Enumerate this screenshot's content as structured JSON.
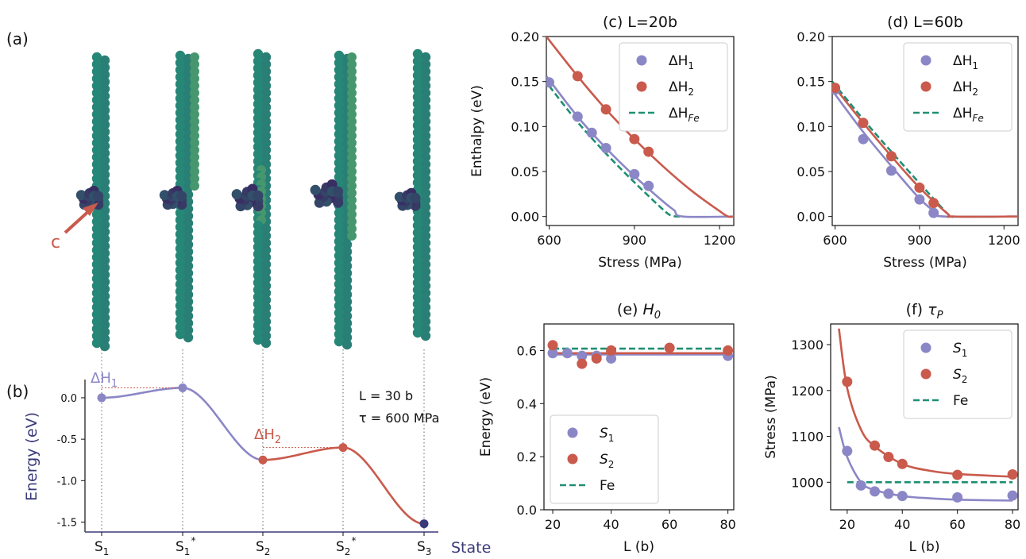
{
  "colors": {
    "purple": "#8b87c6",
    "red": "#c95a4c",
    "green": "#1f8f73",
    "navy": "#3a3a7a",
    "ink": "#111111"
  },
  "panel_a": {
    "label": "(a)",
    "annotation": "c"
  },
  "panel_b": {
    "label": "(b)",
    "ylabel": "Energy (eV)",
    "xlabel": "State",
    "info_l": "L = 30 b",
    "info_tau": "τ = 600 MPa",
    "dh1_label": "ΔH",
    "dh1_sub": "1",
    "dh2_label": "ΔH",
    "dh2_sub": "2"
  },
  "chart_data": [
    {
      "id": "b",
      "type": "line",
      "categories": [
        "S1",
        "S1*",
        "S2",
        "S2*",
        "S3"
      ],
      "category_ticks": [
        {
          "base": "S",
          "sub": "1",
          "sup": ""
        },
        {
          "base": "S",
          "sub": "1",
          "sup": "*"
        },
        {
          "base": "S",
          "sub": "2",
          "sup": ""
        },
        {
          "base": "S",
          "sub": "2",
          "sup": "*"
        },
        {
          "base": "S",
          "sub": "3",
          "sup": ""
        }
      ],
      "values": [
        0.0,
        0.12,
        -0.75,
        -0.6,
        -1.52
      ],
      "yticks": [
        0.0,
        -0.5,
        -1.0,
        -1.5
      ],
      "ytick_labels": [
        "0.0",
        "-0.5",
        "-1.0",
        "-1.5"
      ],
      "ylim": [
        -1.62,
        0.22
      ]
    },
    {
      "id": "c",
      "type": "line",
      "title": "(c) L=20b",
      "xlabel": "Stress (MPa)",
      "ylabel": "Enthalpy (eV)",
      "xlim": [
        590,
        1250
      ],
      "ylim": [
        -0.01,
        0.2
      ],
      "xticks": [
        600,
        900,
        1200
      ],
      "xtick_labels": [
        "600",
        "900",
        "1200"
      ],
      "yticks": [
        0.0,
        0.05,
        0.1,
        0.15,
        0.2
      ],
      "ytick_labels": [
        "0.00",
        "0.05",
        "0.10",
        "0.15",
        "0.20"
      ],
      "legend": "top-right",
      "series": [
        {
          "name": "ΔH1",
          "legend_base": "ΔH",
          "legend_sub": "1",
          "color": "purple",
          "kind": "scatter",
          "x": [
            600,
            700,
            750,
            800,
            900,
            950
          ],
          "y": [
            0.149,
            0.111,
            0.093,
            0.076,
            0.047,
            0.034
          ]
        },
        {
          "name": "ΔH2",
          "legend_base": "ΔH",
          "legend_sub": "2",
          "color": "red",
          "kind": "scatter",
          "x": [
            700,
            800,
            900,
            950
          ],
          "y": [
            0.156,
            0.119,
            0.086,
            0.072
          ]
        },
        {
          "name": "ΔHFe",
          "legend_base": "ΔH",
          "legend_sub": "Fe",
          "color": "green",
          "kind": "dashed",
          "x": [
            600,
            700,
            800,
            900,
            1000,
            1030,
            1060
          ],
          "y": [
            0.145,
            0.105,
            0.07,
            0.038,
            0.008,
            0.001,
            0.0
          ]
        },
        {
          "kind": "line",
          "color": "purple",
          "x": [
            590,
            700,
            800,
            900,
            1000,
            1040,
            1070,
            1250
          ],
          "y": [
            0.156,
            0.111,
            0.076,
            0.045,
            0.017,
            0.007,
            0.0,
            0.0
          ]
        },
        {
          "kind": "line",
          "color": "red",
          "x": [
            590,
            700,
            800,
            900,
            1000,
            1100,
            1200,
            1230,
            1250
          ],
          "y": [
            0.2,
            0.156,
            0.119,
            0.086,
            0.056,
            0.029,
            0.006,
            0.0,
            0.0
          ]
        }
      ]
    },
    {
      "id": "d",
      "type": "line",
      "title": "(d) L=60b",
      "xlabel": "Stress (MPa)",
      "ylabel": "",
      "xlim": [
        590,
        1250
      ],
      "ylim": [
        -0.01,
        0.2
      ],
      "xticks": [
        600,
        900,
        1200
      ],
      "xtick_labels": [
        "600",
        "900",
        "1200"
      ],
      "yticks": [
        0.0,
        0.05,
        0.1,
        0.15,
        0.2
      ],
      "ytick_labels": [
        "0.00",
        "0.05",
        "0.10",
        "0.15",
        "0.20"
      ],
      "legend": "top-right",
      "series": [
        {
          "name": "ΔH1",
          "legend_base": "ΔH",
          "legend_sub": "1",
          "color": "purple",
          "kind": "scatter",
          "x": [
            600,
            700,
            800,
            900,
            950
          ],
          "y": [
            0.141,
            0.086,
            0.051,
            0.019,
            0.004
          ]
        },
        {
          "name": "ΔH2",
          "legend_base": "ΔH",
          "legend_sub": "2",
          "color": "red",
          "kind": "scatter",
          "x": [
            600,
            700,
            800,
            900,
            950
          ],
          "y": [
            0.143,
            0.104,
            0.067,
            0.032,
            0.015
          ]
        },
        {
          "name": "ΔHFe",
          "legend_base": "ΔH",
          "legend_sub": "Fe",
          "color": "green",
          "kind": "dashed",
          "x": [
            590,
            700,
            800,
            900,
            1000,
            1020
          ],
          "y": [
            0.15,
            0.108,
            0.072,
            0.037,
            0.003,
            0.0
          ]
        },
        {
          "kind": "line",
          "color": "purple",
          "x": [
            590,
            700,
            800,
            900,
            960,
            990,
            1250
          ],
          "y": [
            0.14,
            0.094,
            0.056,
            0.02,
            0.004,
            0.0,
            0.0
          ]
        },
        {
          "kind": "line",
          "color": "red",
          "x": [
            590,
            700,
            800,
            900,
            1000,
            1020,
            1250
          ],
          "y": [
            0.147,
            0.104,
            0.067,
            0.032,
            0.003,
            0.0,
            0.0
          ]
        }
      ]
    },
    {
      "id": "e",
      "type": "line",
      "title_base": "(e) ",
      "title_italic": "H",
      "title_sub": "0",
      "xlabel": "L (b)",
      "ylabel": "Energy (eV)",
      "xlim": [
        17,
        82
      ],
      "ylim": [
        0,
        0.7
      ],
      "xticks": [
        20,
        40,
        60,
        80
      ],
      "xtick_labels": [
        "20",
        "40",
        "60",
        "80"
      ],
      "yticks": [
        0.0,
        0.2,
        0.4,
        0.6
      ],
      "ytick_labels": [
        "0.0",
        "0.2",
        "0.4",
        "0.6"
      ],
      "legend": "bottom-left",
      "series": [
        {
          "name": "S1",
          "legend_base": "S",
          "legend_sub": "1",
          "color": "purple",
          "kind": "scatter",
          "x": [
            20,
            25,
            30,
            35,
            40,
            60,
            80
          ],
          "y": [
            0.59,
            0.59,
            0.58,
            0.58,
            0.57,
            0.61,
            0.58
          ]
        },
        {
          "name": "S2",
          "legend_base": "S",
          "legend_sub": "2",
          "color": "red",
          "kind": "scatter",
          "x": [
            20,
            30,
            35,
            40,
            60,
            80
          ],
          "y": [
            0.62,
            0.55,
            0.57,
            0.6,
            0.61,
            0.6
          ]
        },
        {
          "name": "Fe",
          "legend_base": "Fe",
          "legend_sub": "",
          "color": "green",
          "kind": "dashed",
          "x": [
            20,
            80
          ],
          "y": [
            0.607,
            0.607
          ]
        },
        {
          "kind": "line",
          "color": "purple",
          "x": [
            20,
            80
          ],
          "y": [
            0.585,
            0.585
          ]
        },
        {
          "kind": "line",
          "color": "red",
          "x": [
            20,
            80
          ],
          "y": [
            0.59,
            0.59
          ]
        }
      ]
    },
    {
      "id": "f",
      "type": "line",
      "title_base": "(f) ",
      "title_italic": "τ",
      "title_sub": "P",
      "xlabel": "L (b)",
      "ylabel": "Stress (MPa)",
      "xlim": [
        14,
        82
      ],
      "ylim": [
        940,
        1345
      ],
      "xticks": [
        20,
        40,
        60,
        80
      ],
      "xtick_labels": [
        "20",
        "40",
        "60",
        "80"
      ],
      "yticks": [
        1000,
        1100,
        1200,
        1300
      ],
      "ytick_labels": [
        "1000",
        "1100",
        "1200",
        "1300"
      ],
      "legend": "top-right",
      "series": [
        {
          "name": "S1",
          "legend_base": "S",
          "legend_sub": "1",
          "color": "purple",
          "kind": "scatter",
          "x": [
            20,
            25,
            30,
            35,
            40,
            60,
            80
          ],
          "y": [
            1068,
            993,
            980,
            975,
            970,
            967,
            971
          ]
        },
        {
          "name": "S2",
          "legend_base": "S",
          "legend_sub": "2",
          "color": "red",
          "kind": "scatter",
          "x": [
            20,
            30,
            35,
            40,
            60,
            80
          ],
          "y": [
            1219,
            1080,
            1055,
            1040,
            1016,
            1017
          ]
        },
        {
          "name": "Fe",
          "legend_base": "Fe",
          "legend_sub": "",
          "color": "green",
          "kind": "dashed",
          "x": [
            20,
            80
          ],
          "y": [
            1000,
            1000
          ]
        },
        {
          "kind": "line",
          "color": "purple",
          "x": [
            17,
            20,
            25,
            30,
            40,
            50,
            60,
            80
          ],
          "y": [
            1120,
            1055,
            1000,
            983,
            970,
            965,
            962,
            960
          ]
        },
        {
          "kind": "line",
          "color": "red",
          "x": [
            17,
            20,
            25,
            30,
            40,
            50,
            60,
            80
          ],
          "y": [
            1335,
            1205,
            1115,
            1078,
            1040,
            1025,
            1018,
            1012
          ]
        }
      ]
    }
  ]
}
